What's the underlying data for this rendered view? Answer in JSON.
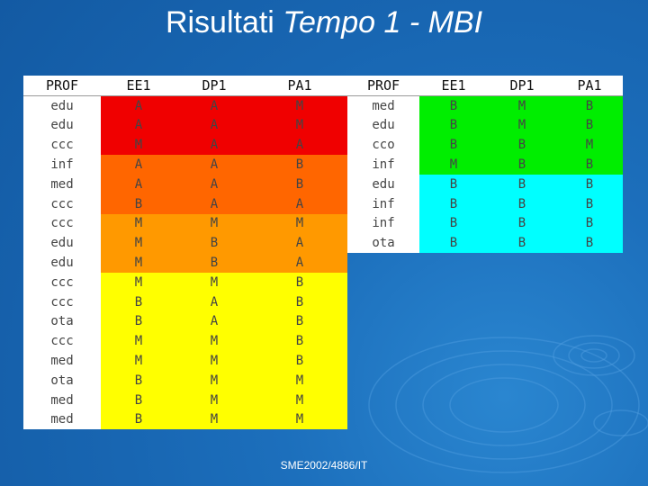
{
  "title": {
    "main": "Risultati",
    "italic": "Tempo 1 - MBI"
  },
  "colors": {
    "red": "#f00000",
    "dark_orange": "#ff6600",
    "orange": "#ff9900",
    "yellow": "#ffff00",
    "green": "#00ee00",
    "cyan": "#00ffff"
  },
  "left_table": {
    "headers": [
      "PROF",
      "EE1",
      "DP1",
      "PA1"
    ],
    "rows": [
      {
        "color": "red",
        "cells": [
          "edu",
          "A",
          "A",
          "M"
        ]
      },
      {
        "color": "red",
        "cells": [
          "edu",
          "A",
          "A",
          "M"
        ]
      },
      {
        "color": "red",
        "cells": [
          "ccc",
          "M",
          "A",
          "A"
        ]
      },
      {
        "color": "dark_orange",
        "cells": [
          "inf",
          "A",
          "A",
          "B"
        ]
      },
      {
        "color": "dark_orange",
        "cells": [
          "med",
          "A",
          "A",
          "B"
        ]
      },
      {
        "color": "dark_orange",
        "cells": [
          "ccc",
          "B",
          "A",
          "A"
        ]
      },
      {
        "color": "orange",
        "cells": [
          "ccc",
          "M",
          "M",
          "M"
        ]
      },
      {
        "color": "orange",
        "cells": [
          "edu",
          "M",
          "B",
          "A"
        ]
      },
      {
        "color": "orange",
        "cells": [
          "edu",
          "M",
          "B",
          "A"
        ]
      },
      {
        "color": "yellow",
        "cells": [
          "ccc",
          "M",
          "M",
          "B"
        ]
      },
      {
        "color": "yellow",
        "cells": [
          "ccc",
          "B",
          "A",
          "B"
        ]
      },
      {
        "color": "yellow",
        "cells": [
          "ota",
          "B",
          "A",
          "B"
        ]
      },
      {
        "color": "yellow",
        "cells": [
          "ccc",
          "M",
          "M",
          "B"
        ]
      },
      {
        "color": "yellow",
        "cells": [
          "med",
          "M",
          "M",
          "B"
        ]
      },
      {
        "color": "yellow",
        "cells": [
          "ota",
          "B",
          "M",
          "M"
        ]
      },
      {
        "color": "yellow",
        "cells": [
          "med",
          "B",
          "M",
          "M"
        ]
      },
      {
        "color": "yellow",
        "cells": [
          "med",
          "B",
          "M",
          "M"
        ]
      }
    ]
  },
  "right_table": {
    "headers": [
      "PROF",
      "EE1",
      "DP1",
      "PA1"
    ],
    "rows": [
      {
        "color": "green",
        "cells": [
          "med",
          "B",
          "M",
          "B"
        ]
      },
      {
        "color": "green",
        "cells": [
          "edu",
          "B",
          "M",
          "B"
        ]
      },
      {
        "color": "green",
        "cells": [
          "cco",
          "B",
          "B",
          "M"
        ]
      },
      {
        "color": "green",
        "cells": [
          "inf",
          "M",
          "B",
          "B"
        ]
      },
      {
        "color": "cyan",
        "cells": [
          "edu",
          "B",
          "B",
          "B"
        ]
      },
      {
        "color": "cyan",
        "cells": [
          "inf",
          "B",
          "B",
          "B"
        ]
      },
      {
        "color": "cyan",
        "cells": [
          "inf",
          "B",
          "B",
          "B"
        ]
      },
      {
        "color": "cyan",
        "cells": [
          "ota",
          "B",
          "B",
          "B"
        ]
      }
    ]
  },
  "footer": "SME2002/4886/IT"
}
